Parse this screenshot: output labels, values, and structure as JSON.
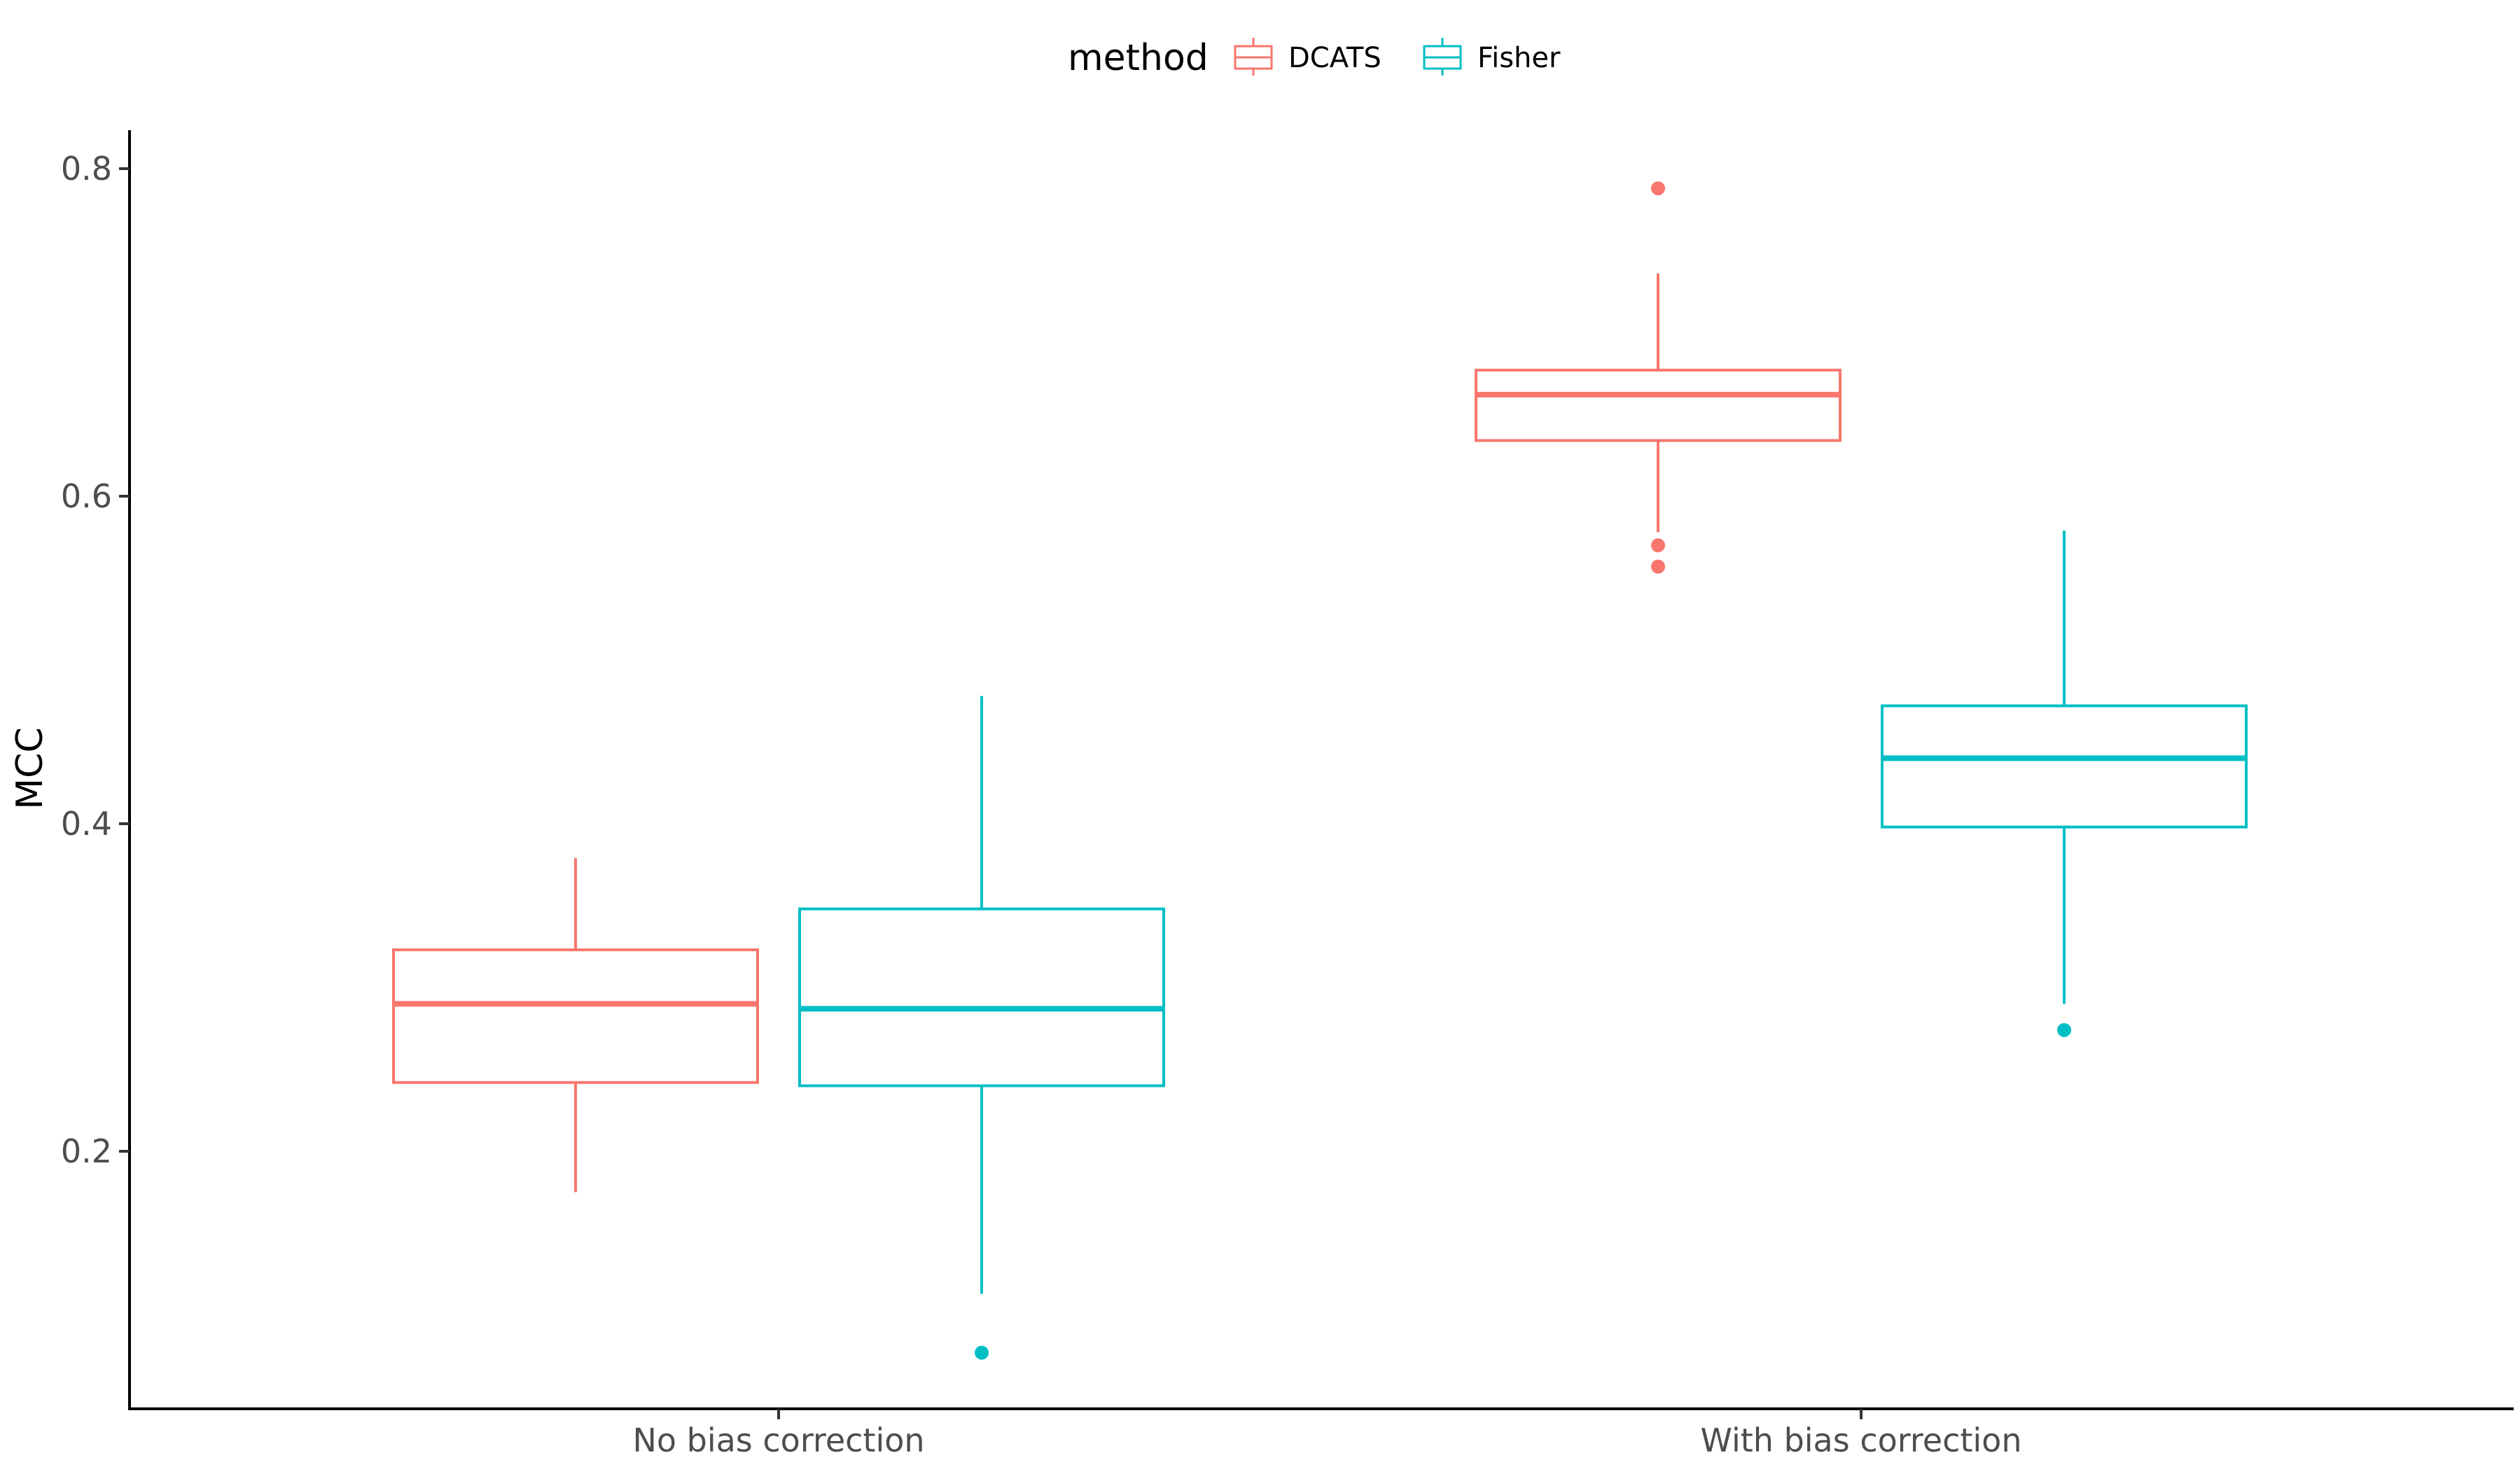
{
  "chart_data": {
    "type": "boxplot",
    "title": "",
    "xlabel": "",
    "ylabel": "MCC",
    "ylim": [
      0.05,
      0.82
    ],
    "yticks": [
      0.2,
      0.4,
      0.6,
      0.8
    ],
    "ytick_labels": [
      "0.2",
      "0.4",
      "0.6",
      "0.8"
    ],
    "grid": false,
    "legend": {
      "title": "method",
      "position": "top"
    },
    "categories": [
      "No bias correction",
      "With bias correction"
    ],
    "series": [
      {
        "name": "DCATS",
        "color": "#f8766d",
        "boxes": [
          {
            "category": "No bias correction",
            "lower_whisker": 0.175,
            "q1": 0.242,
            "median": 0.29,
            "q3": 0.323,
            "upper_whisker": 0.379,
            "outliers": []
          },
          {
            "category": "With bias correction",
            "lower_whisker": 0.578,
            "q1": 0.634,
            "median": 0.662,
            "q3": 0.677,
            "upper_whisker": 0.736,
            "outliers": [
              0.557,
              0.57,
              0.788
            ]
          }
        ]
      },
      {
        "name": "Fisher",
        "color": "#00bfc4",
        "boxes": [
          {
            "category": "No bias correction",
            "lower_whisker": 0.113,
            "q1": 0.24,
            "median": 0.287,
            "q3": 0.348,
            "upper_whisker": 0.478,
            "outliers": [
              0.077
            ]
          },
          {
            "category": "With bias correction",
            "lower_whisker": 0.29,
            "q1": 0.398,
            "median": 0.44,
            "q3": 0.472,
            "upper_whisker": 0.579,
            "outliers": [
              0.274
            ]
          }
        ]
      }
    ]
  }
}
